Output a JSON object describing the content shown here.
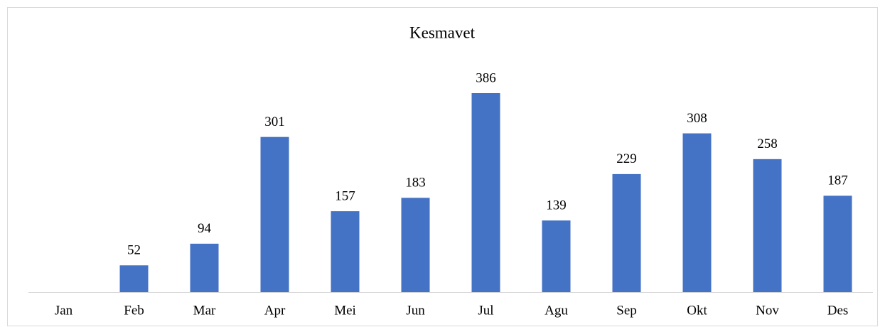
{
  "chart_data": {
    "type": "bar",
    "title": "Kesmavet",
    "categories": [
      "Jan",
      "Feb",
      "Mar",
      "Apr",
      "Mei",
      "Jun",
      "Jul",
      "Agu",
      "Sep",
      "Okt",
      "Nov",
      "Des"
    ],
    "values": [
      null,
      52,
      94,
      301,
      157,
      183,
      386,
      139,
      229,
      308,
      258,
      187
    ],
    "color": "#4472c4"
  }
}
